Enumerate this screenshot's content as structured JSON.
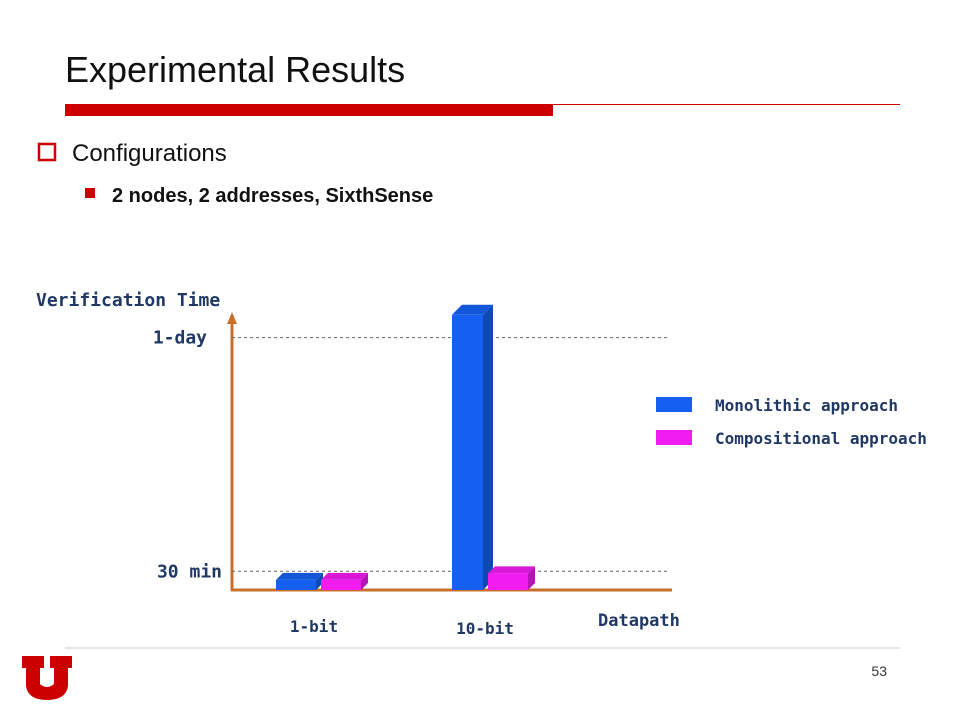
{
  "slide": {
    "title": "Experimental Results",
    "bullets": [
      {
        "text": "Configurations",
        "sub": [
          "2 nodes, 2 addresses, SixthSense"
        ]
      }
    ],
    "page_number": 53
  },
  "chart_data": {
    "type": "bar",
    "y_label": "Verification Time",
    "x_label": "Datapath",
    "categories": [
      "1-bit",
      "10-bit"
    ],
    "series": [
      {
        "name": "Monolithic approach",
        "color": "#1560f0",
        "values": [
          26,
          2100
        ]
      },
      {
        "name": "Compositional approach",
        "color": "#f01cf0",
        "values": [
          26,
          29
        ]
      }
    ],
    "ylim": [
      22,
      2200
    ],
    "log_scale": true,
    "yticks": [
      {
        "value": 30,
        "label": "30 min"
      },
      {
        "value": 1440,
        "label": "1-day"
      }
    ],
    "grid": true,
    "legend": "right"
  }
}
